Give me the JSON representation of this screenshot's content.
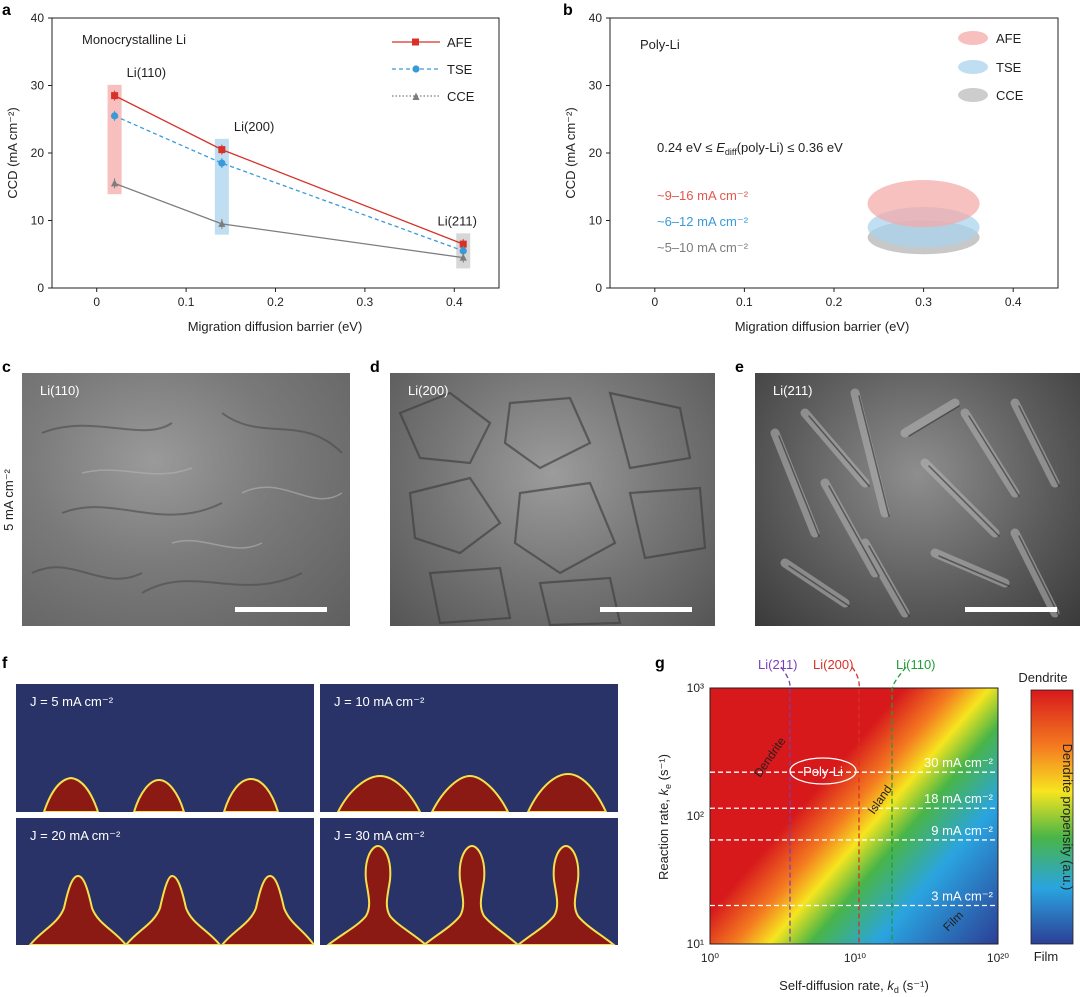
{
  "panels": {
    "a": "a",
    "b": "b",
    "c": "c",
    "d": "d",
    "e": "e",
    "f": "f",
    "g": "g"
  },
  "panel_a": {
    "inset_title": "Monocrystalline Li",
    "xlabel": "Migration diffusion barrier (eV)",
    "ylabel": "CCD (mA cm⁻²)",
    "xticks": [
      "0",
      "0.1",
      "0.2",
      "0.3",
      "0.4"
    ],
    "yticks": [
      "0",
      "10",
      "20",
      "30",
      "40"
    ],
    "facet_labels": [
      "Li(110)",
      "Li(200)",
      "Li(211)"
    ],
    "legend": [
      "AFE",
      "TSE",
      "CCE"
    ],
    "colors": {
      "AFE": "#d7312a",
      "TSE": "#3a9ad9",
      "CCE": "#7d7d7d"
    }
  },
  "panel_b": {
    "inset_title": "Poly-Li",
    "xlabel": "Migration diffusion barrier (eV)",
    "ylabel": "CCD (mA cm⁻²)",
    "xticks": [
      "0",
      "0.1",
      "0.2",
      "0.3",
      "0.4"
    ],
    "yticks": [
      "0",
      "10",
      "20",
      "30",
      "40"
    ],
    "legend": [
      "AFE",
      "TSE",
      "CCE"
    ],
    "energy_text_a": "0.24 eV ≤ ",
    "energy_sym": "E",
    "energy_sub": "diff",
    "energy_text_b": "(poly-Li) ≤ 0.36 eV",
    "ranges": [
      "~9–16 mA cm⁻²",
      "~6–12 mA cm⁻²",
      "~5–10 mA cm⁻²"
    ]
  },
  "sem": {
    "row_label": "5 mA cm⁻²",
    "labels": [
      "Li(110)",
      "Li(200)",
      "Li(211)"
    ]
  },
  "sim": {
    "labels": [
      "J = 5 mA cm⁻²",
      "J = 10 mA cm⁻²",
      "J = 20 mA cm⁻²",
      "J = 30 mA cm⁻²"
    ]
  },
  "panel_g": {
    "xlabel_a": "Self-diffusion rate, ",
    "xlabel_sym": "k",
    "xlabel_sub": "d",
    "xlabel_b": " (s⁻¹)",
    "ylabel_a": "Reaction rate, ",
    "ylabel_sym": "k",
    "ylabel_sub": "e",
    "ylabel_b": " (s⁻¹)",
    "xticks": [
      "10⁰",
      "10¹⁰",
      "10²⁰"
    ],
    "yticks": [
      "10³",
      "10²",
      "10¹"
    ],
    "top_labels": [
      "Li(211)",
      "Li(200)",
      "Li(110)"
    ],
    "top_colors": [
      "#7b3fb5",
      "#d7312a",
      "#1e9e3a"
    ],
    "current_lines": [
      "30 mA cm⁻²",
      "18 mA cm⁻²",
      "9 mA cm⁻²",
      "3 mA cm⁻²"
    ],
    "regions": [
      "Dendrite",
      "Island",
      "Film"
    ],
    "poly_label": "Poly-Li",
    "colorbar_top": "Dendrite",
    "colorbar_bottom": "Film",
    "colorbar_title": "Dendrite propensity (a.u.)"
  },
  "chart_data": [
    {
      "type": "line",
      "panel": "a",
      "x": [
        0.02,
        0.14,
        0.41
      ],
      "categories": [
        "Li(110)",
        "Li(200)",
        "Li(211)"
      ],
      "series": [
        {
          "name": "AFE",
          "values": [
            28.5,
            20.5,
            6.5
          ]
        },
        {
          "name": "TSE",
          "values": [
            25.5,
            18.5,
            5.5
          ]
        },
        {
          "name": "CCE",
          "values": [
            15.5,
            9.5,
            4.5
          ]
        }
      ],
      "xlim": [
        -0.05,
        0.45
      ],
      "ylim": [
        0,
        40
      ],
      "xlabel": "Migration diffusion barrier (eV)",
      "ylabel": "CCD (mA cm⁻²)",
      "legend": "top-right"
    },
    {
      "type": "area",
      "panel": "b",
      "series": [
        {
          "name": "AFE",
          "center_x": 0.3,
          "y_range": [
            9,
            16
          ]
        },
        {
          "name": "TSE",
          "center_x": 0.3,
          "y_range": [
            6,
            12
          ]
        },
        {
          "name": "CCE",
          "center_x": 0.3,
          "y_range": [
            5,
            10
          ]
        }
      ],
      "xlim": [
        -0.05,
        0.45
      ],
      "ylim": [
        0,
        40
      ],
      "legend": "top-right"
    },
    {
      "type": "heatmap",
      "panel": "g",
      "x_scale": "log",
      "y_scale": "log",
      "xlim": [
        1,
        1e+20
      ],
      "ylim": [
        10,
        1000
      ],
      "current_lines_y": [
        220,
        115,
        65,
        20
      ],
      "facet_x": {
        "Li(211)": 1000.0,
        "Li(200)": 10000000000.0,
        "Li(110)": 10000000000000.0
      }
    }
  ]
}
